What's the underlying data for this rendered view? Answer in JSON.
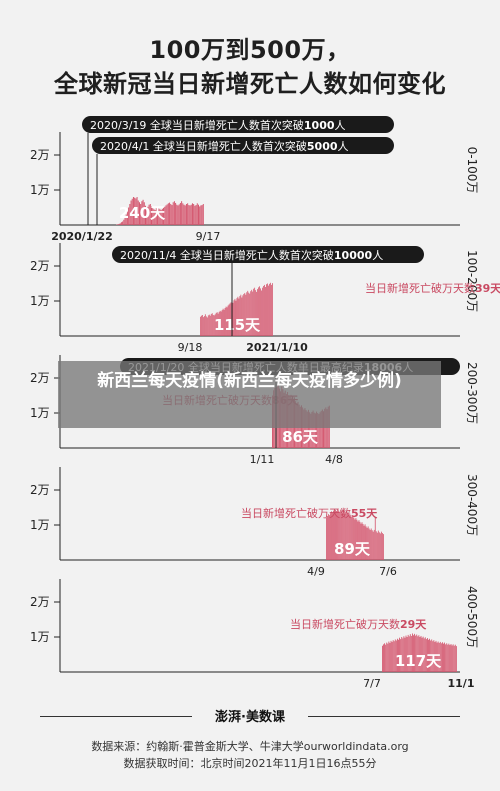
{
  "header": {
    "title_line1": "100万到500万，",
    "title_line2": "全球新冠当日新增死亡人数如何变化"
  },
  "overlay": {
    "caption": "新西兰每天疫情(新西兰每天疫情多少例)"
  },
  "footer": {
    "logo": "澎湃·美数课",
    "source": "数据来源：约翰斯·霍普金斯大学、牛津大学ourworldindata.org",
    "fetched": "数据获取时间：北京时间2021年11月1日16点55分"
  },
  "colors": {
    "bar": "#d4566e",
    "bar_fill": "#c94a62",
    "baseline": "#f2c7cf",
    "callout_bg": "#1a1a1a",
    "callout_text": "#ffffff",
    "accent_text": "#c94a62",
    "axis": "#222222"
  },
  "chart_data": [
    {
      "type": "bar",
      "range_label": "0-100万",
      "ylabels": [
        "2万",
        "1万"
      ],
      "yticks": [
        20000,
        10000
      ],
      "ylim": [
        0,
        25000
      ],
      "x_labels": [
        {
          "date": "2020/1/22",
          "bold": true
        },
        {
          "date": "9/17",
          "bold": false
        }
      ],
      "day_range": [
        0,
        240
      ],
      "span_label": "240天",
      "callouts": [
        {
          "date": "2020/3/19",
          "text": "全球当日新增死亡人数首次突破",
          "number": "1000",
          "suffix": "人",
          "day": 57
        },
        {
          "date": "2020/4/1",
          "text": "全球当日新增死亡人数首次突破",
          "number": "5000",
          "suffix": "人",
          "day": 70
        }
      ],
      "values": [
        0,
        0,
        0,
        0,
        0,
        0,
        0,
        0,
        0,
        0,
        0,
        0,
        0,
        0,
        0,
        0,
        0,
        0,
        0,
        0,
        100,
        200,
        300,
        500,
        800,
        1000,
        1500,
        2200,
        3000,
        4000,
        5000,
        6000,
        7000,
        7500,
        8000,
        7800,
        7600,
        8000,
        7000,
        6500,
        6000,
        6800,
        7200,
        6500,
        5500,
        5000,
        5200,
        5800,
        6000,
        5400,
        4800,
        4500,
        4300,
        4800,
        5000,
        4700,
        4500,
        4300,
        4600,
        5000,
        5200,
        5600,
        5900,
        6200,
        6400,
        6000,
        5700,
        6500,
        6800,
        6300,
        5800,
        5600,
        5900,
        6300,
        6800,
        6200,
        5800,
        5600,
        6000,
        6200,
        5700,
        5600,
        5800,
        6200,
        6000,
        5500,
        5700,
        6200,
        5800,
        5300,
        5600,
        5700,
        6000
      ]
    },
    {
      "type": "bar",
      "range_label": "100-200万",
      "ylabels": [
        "2万",
        "1万"
      ],
      "yticks": [
        20000,
        10000
      ],
      "ylim": [
        0,
        25000
      ],
      "x_labels": [
        {
          "date": "9/18",
          "bold": false
        },
        {
          "date": "2021/1/10",
          "bold": true
        }
      ],
      "span_label": "115天",
      "note": {
        "text": "当日新增死亡破万天数",
        "number": "39天"
      },
      "callouts": [
        {
          "date": "2020/11/4",
          "text": "全球当日新增死亡人数首次突破",
          "number": "10000",
          "suffix": "人",
          "day": 47
        }
      ],
      "values": [
        5500,
        5800,
        6000,
        5400,
        5700,
        6200,
        5600,
        5300,
        5900,
        6100,
        5800,
        6300,
        6500,
        6000,
        5900,
        6200,
        6600,
        6800,
        6400,
        6900,
        7200,
        7000,
        7400,
        7800,
        7500,
        8000,
        8400,
        8200,
        8700,
        9000,
        9300,
        9600,
        10000,
        9500,
        10200,
        10600,
        10100,
        10800,
        11200,
        10700,
        11400,
        11800,
        11000,
        11600,
        12000,
        12300,
        11800,
        12500,
        12900,
        12400,
        12100,
        12800,
        13200,
        12700,
        13500,
        13800,
        13100,
        12600,
        13400,
        13900,
        14200,
        13600,
        13000,
        13800,
        14300,
        14600,
        14000,
        14800,
        15000,
        14400,
        14900,
        15200,
        14600,
        15100
      ]
    },
    {
      "type": "bar",
      "range_label": "200-300万",
      "ylabels": [
        "2万",
        "1万"
      ],
      "yticks": [
        20000,
        10000
      ],
      "ylim": [
        0,
        25000
      ],
      "x_labels": [
        {
          "date": "1/11",
          "bold": false
        },
        {
          "date": "4/8",
          "bold": false
        }
      ],
      "span_label": "86天",
      "note": {
        "text": "当日新增死亡破万天数",
        "number": "86天"
      },
      "callouts": [
        {
          "date": "2021/1/20",
          "text": "全球当日新增死亡人数单日最高纪录",
          "number": "18006",
          "suffix": "人",
          "day": 9
        }
      ],
      "values": [
        15000,
        16500,
        17200,
        16000,
        17500,
        18006,
        17000,
        16200,
        17600,
        16800,
        15800,
        16400,
        15400,
        16000,
        15100,
        14600,
        15200,
        14200,
        13800,
        14500,
        13400,
        12800,
        13200,
        12400,
        11800,
        12200,
        11600,
        11000,
        11400,
        10800,
        10400,
        10900,
        10200,
        9800,
        10300,
        10700,
        10100,
        9900,
        10400,
        10000,
        9700,
        10200,
        10600,
        11000,
        10500,
        11200,
        11600,
        11100,
        11800,
        12100
      ]
    },
    {
      "type": "bar",
      "range_label": "300-400万",
      "ylabels": [
        "2万",
        "1万"
      ],
      "yticks": [
        20000,
        10000
      ],
      "ylim": [
        0,
        25000
      ],
      "x_labels": [
        {
          "date": "4/9",
          "bold": false
        },
        {
          "date": "7/6",
          "bold": false
        }
      ],
      "span_label": "89天",
      "note": {
        "text": "当日新增死亡破万天数",
        "number": "55天"
      },
      "callouts": [],
      "values": [
        12000,
        12600,
        13100,
        12800,
        13400,
        13900,
        13500,
        14100,
        13700,
        14300,
        14000,
        14600,
        14200,
        13800,
        14400,
        14000,
        13600,
        14100,
        13700,
        13300,
        13800,
        13400,
        12900,
        13300,
        12800,
        12300,
        12700,
        12100,
        11600,
        12000,
        11500,
        11000,
        11400,
        10900,
        10400,
        10800,
        10300,
        9800,
        10200,
        9600,
        9200,
        9600,
        9000,
        8600,
        9000,
        8500,
        8100,
        8600,
        12000,
        8200,
        7800,
        8400,
        7900,
        7600,
        8100,
        7700,
        7400
      ]
    },
    {
      "type": "bar",
      "range_label": "400-500万",
      "ylabels": [
        "2万",
        "1万"
      ],
      "yticks": [
        20000,
        10000
      ],
      "ylim": [
        0,
        25000
      ],
      "x_labels": [
        {
          "date": "7/7",
          "bold": false
        },
        {
          "date": "11/1",
          "bold": true
        }
      ],
      "span_label": "117天",
      "note": {
        "text": "当日新增死亡破万天数",
        "number": "29天"
      },
      "callouts": [],
      "values": [
        7500,
        7900,
        8200,
        7800,
        8400,
        8100,
        8700,
        8300,
        8900,
        8600,
        9100,
        8800,
        9300,
        9000,
        9500,
        9200,
        9800,
        9400,
        10000,
        9600,
        10200,
        9800,
        10400,
        10000,
        10600,
        10200,
        10800,
        10300,
        11000,
        10500,
        10900,
        10400,
        10700,
        10200,
        10500,
        10000,
        10300,
        9800,
        10100,
        9600,
        9900,
        9400,
        9700,
        9200,
        9500,
        9000,
        9300,
        8800,
        9100,
        8600,
        8900,
        8400,
        8700,
        8300,
        8600,
        8200,
        8500,
        8100,
        8400,
        7900,
        8200,
        7800,
        8100,
        7700,
        8000,
        7600,
        7900,
        7500,
        7800,
        7400
      ]
    }
  ]
}
